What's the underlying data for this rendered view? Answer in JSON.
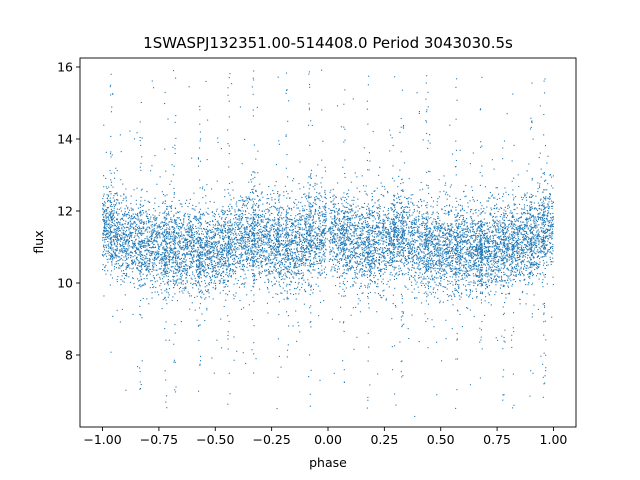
{
  "chart_data": {
    "type": "scatter",
    "title": "1SWASPJ132351.00-514408.0 Period 3043030.5s",
    "xlabel": "phase",
    "ylabel": "flux",
    "xlim": [
      -1.1,
      1.1
    ],
    "ylim": [
      6.0,
      16.25
    ],
    "xticks": [
      -1.0,
      -0.75,
      -0.5,
      -0.25,
      0.0,
      0.25,
      0.5,
      0.75,
      1.0
    ],
    "xtick_labels": [
      "−1.00",
      "−0.75",
      "−0.50",
      "−0.25",
      "0.00",
      "0.25",
      "0.50",
      "0.75",
      "1.00"
    ],
    "yticks": [
      8,
      10,
      12,
      14,
      16
    ],
    "ytick_labels": [
      "8",
      "10",
      "12",
      "14",
      "16"
    ],
    "grid": false,
    "marker_color": "#1f77b4",
    "description_of_series": "phase-folded light curve, mirrored about phase 0",
    "series": [
      {
        "x": [
          -0.98,
          -0.95,
          -0.9,
          -0.86,
          -0.8,
          -0.75,
          -0.7,
          -0.66,
          -0.6,
          -0.55,
          -0.5,
          -0.45,
          -0.4,
          -0.35,
          -0.3,
          -0.25,
          -0.2,
          -0.15,
          -0.1,
          -0.05,
          0.0,
          0.05,
          0.1,
          0.15,
          0.2,
          0.25,
          0.3,
          0.35,
          0.4,
          0.45,
          0.5,
          0.55,
          0.6,
          0.66,
          0.7,
          0.75,
          0.8,
          0.86,
          0.9,
          0.95,
          0.98
        ],
        "y": [
          11.6,
          11.4,
          11.2,
          11.1,
          11.0,
          11.0,
          10.9,
          10.9,
          11.0,
          10.9,
          10.9,
          11.0,
          11.1,
          11.2,
          11.3,
          11.1,
          11.0,
          11.0,
          11.2,
          11.3,
          11.4,
          11.3,
          11.2,
          11.0,
          11.0,
          11.1,
          11.3,
          11.2,
          11.1,
          11.0,
          10.9,
          10.9,
          11.0,
          10.9,
          10.9,
          11.0,
          11.0,
          11.1,
          11.2,
          11.4,
          11.6
        ]
      }
    ]
  }
}
